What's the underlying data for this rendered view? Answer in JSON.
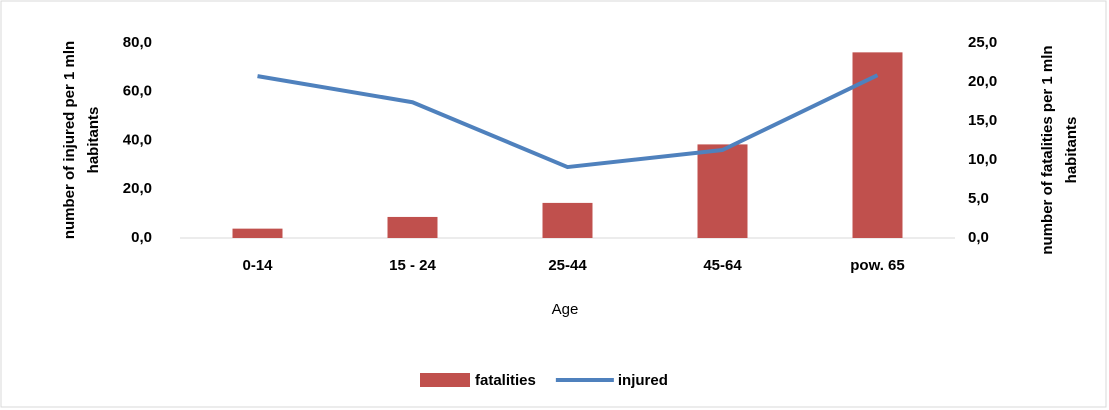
{
  "chart_data": {
    "type": "bar-line",
    "categories": [
      "0-14",
      "15 - 24",
      "25-44",
      "45-64",
      "pow. 65"
    ],
    "series": [
      {
        "name": "fatalities",
        "type": "bar",
        "axis": "y2",
        "color": "#c0504d",
        "values": [
          1.2,
          2.7,
          4.5,
          12.0,
          23.8
        ]
      },
      {
        "name": "injured",
        "type": "line",
        "axis": "y",
        "color": "#4f81bd",
        "values": [
          66.4,
          55.7,
          29.1,
          36.1,
          66.8
        ]
      }
    ],
    "xlabel": "Age",
    "ylabel": [
      "number of injured per 1 mln",
      "habitants"
    ],
    "y2label": [
      "number of fatalities per 1 mln",
      "habitants"
    ],
    "ylim": [
      0,
      80
    ],
    "yticks": [
      {
        "value": 0,
        "label": "0,0"
      },
      {
        "value": 20,
        "label": "20,0"
      },
      {
        "value": 40,
        "label": "40,0"
      },
      {
        "value": 60,
        "label": "60,0"
      },
      {
        "value": 80,
        "label": "80,0"
      }
    ],
    "y2lim": [
      0,
      25
    ],
    "y2ticks": [
      {
        "value": 0,
        "label": "0,0"
      },
      {
        "value": 5,
        "label": "5,0"
      },
      {
        "value": 10,
        "label": "10,0"
      },
      {
        "value": 15,
        "label": "15,0"
      },
      {
        "value": 20,
        "label": "20,0"
      },
      {
        "value": 25,
        "label": "25,0"
      }
    ],
    "legend": "bottom"
  }
}
